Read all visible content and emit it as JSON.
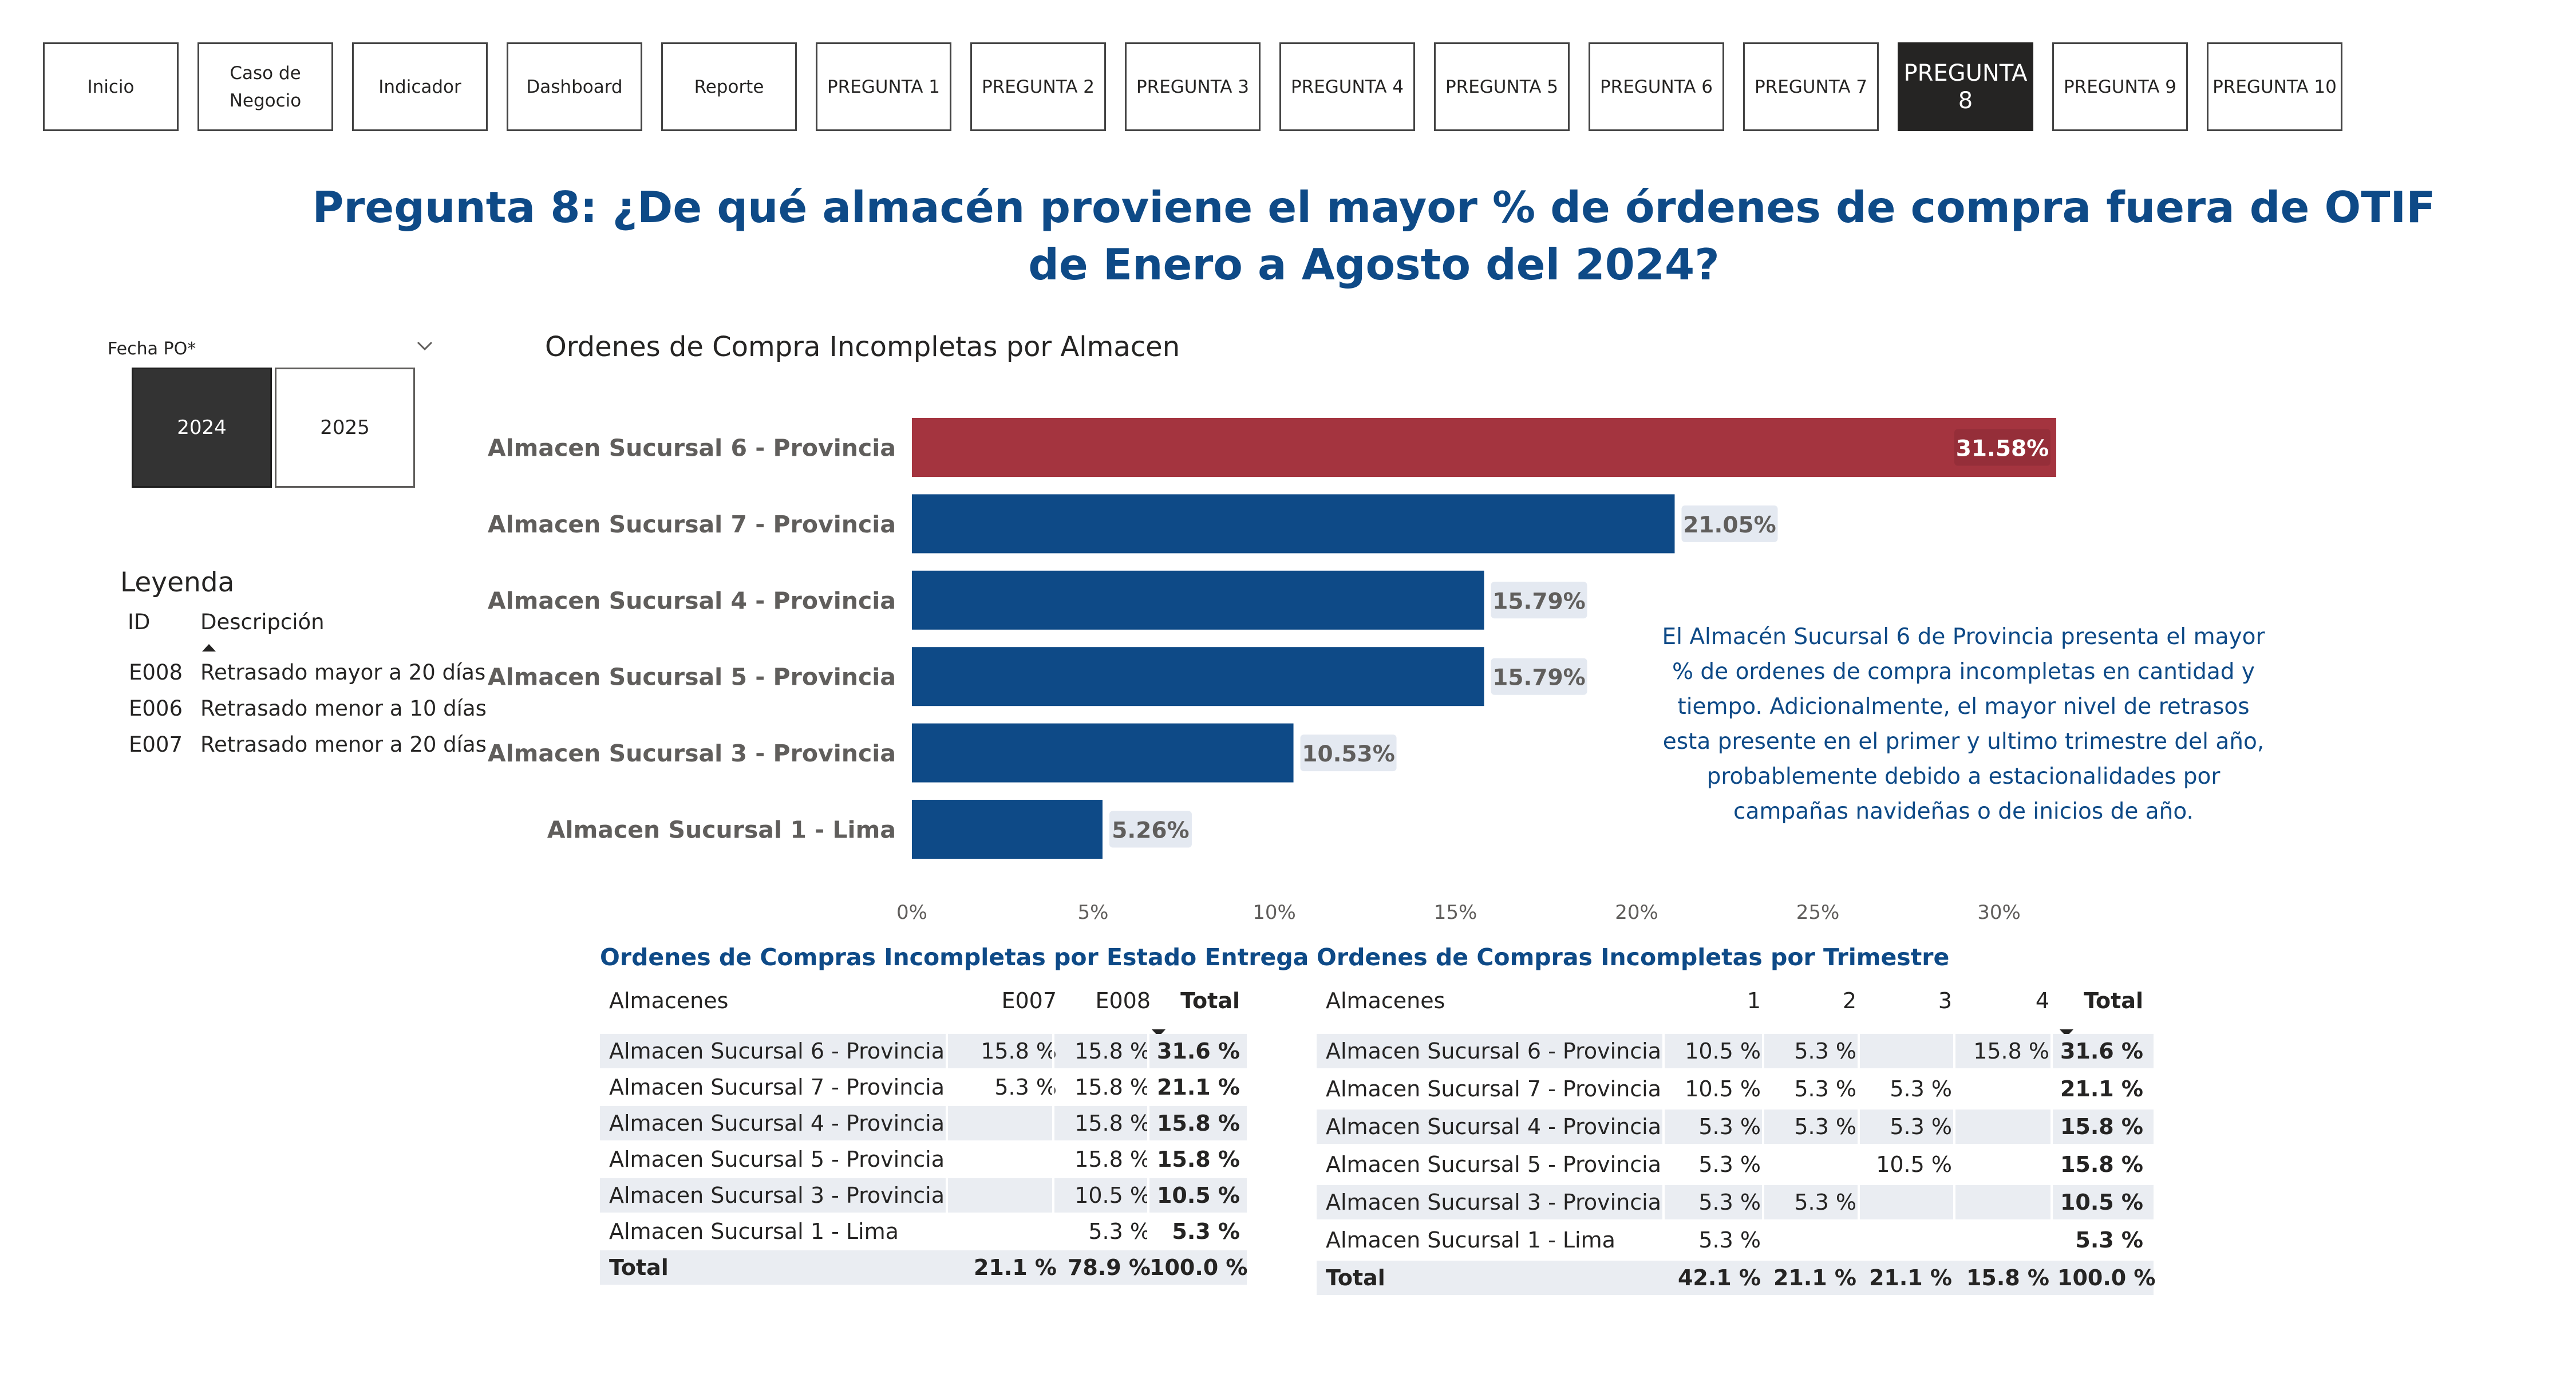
{
  "nav": {
    "buttons": [
      "Inicio",
      "Caso de Negocio",
      "Indicador",
      "Dashboard",
      "Reporte",
      "PREGUNTA 1",
      "PREGUNTA 2",
      "PREGUNTA 3",
      "PREGUNTA 4",
      "PREGUNTA 5",
      "PREGUNTA 6",
      "PREGUNTA 7",
      "PREGUNTA 8",
      "PREGUNTA 9",
      "PREGUNTA 10"
    ],
    "active": "PREGUNTA 8",
    "caso_line1": "Caso de",
    "caso_line2": "Negocio"
  },
  "title": {
    "line1": "Pregunta 8: ¿De qué almacén proviene el mayor % de órdenes de compra fuera de OTIF",
    "line2": "de Enero a Agosto del 2024?"
  },
  "slicer": {
    "label": "Fecha PO*",
    "options": [
      "2024",
      "2025"
    ],
    "selected": "2024"
  },
  "legend": {
    "title": "Leyenda",
    "col_id": "ID",
    "col_desc": "Descripción",
    "rows": [
      {
        "id": "E008",
        "desc": "Retrasado mayor a 20 días"
      },
      {
        "id": "E006",
        "desc": "Retrasado menor a 10 días"
      },
      {
        "id": "E007",
        "desc": "Retrasado menor a 20 días"
      }
    ]
  },
  "insight": "El Almacén Sucursal 6 de Provincia presenta el mayor % de ordenes de compra incompletas en cantidad y tiempo. Adicionalmente, el mayor nivel de retrasos esta presente en el primer y ultimo trimestre del año, probablemente debido a estacionalidades por campañas navideñas o de inicios de año.",
  "colors": {
    "highlight": "#a4343f",
    "bar": "#0e4a87",
    "title": "#0e4a87",
    "label_bg": "#e4e9f1"
  },
  "chart_data": {
    "type": "bar",
    "orientation": "horizontal",
    "title": "Ordenes de Compra Incompletas por Almacen",
    "categories": [
      "Almacen Sucursal 6 - Provincia",
      "Almacen Sucursal 7 - Provincia",
      "Almacen Sucursal 4 - Provincia",
      "Almacen Sucursal 5 - Provincia",
      "Almacen Sucursal 3 - Provincia",
      "Almacen Sucursal 1 - Lima"
    ],
    "values": [
      31.58,
      21.05,
      15.79,
      15.79,
      10.53,
      5.26
    ],
    "labels": [
      "31.58%",
      "21.05%",
      "15.79%",
      "15.79%",
      "10.53%",
      "5.26%"
    ],
    "highlighted_index": 0,
    "xlim": [
      0,
      31.58
    ],
    "xticks": [
      0,
      5,
      10,
      15,
      20,
      25,
      30
    ],
    "xtick_labels": [
      "0%",
      "5%",
      "10%",
      "15%",
      "20%",
      "25%",
      "30%"
    ],
    "grid": false
  },
  "table_estado": {
    "title": "Ordenes de Compras Incompletas por Estado Entrega",
    "headers": [
      "Almacenes",
      "E007",
      "E008",
      "Total"
    ],
    "rows": [
      [
        "Almacen Sucursal 6 - Provincia",
        "15.8 %",
        "15.8 %",
        "31.6 %"
      ],
      [
        "Almacen Sucursal 7 - Provincia",
        "5.3 %",
        "15.8 %",
        "21.1 %"
      ],
      [
        "Almacen Sucursal 4 - Provincia",
        "",
        "15.8 %",
        "15.8 %"
      ],
      [
        "Almacen Sucursal 5 - Provincia",
        "",
        "15.8 %",
        "15.8 %"
      ],
      [
        "Almacen Sucursal 3 - Provincia",
        "",
        "10.5 %",
        "10.5 %"
      ],
      [
        "Almacen Sucursal 1 - Lima",
        "",
        "5.3 %",
        "5.3 %"
      ]
    ],
    "total": [
      "Total",
      "21.1 %",
      "78.9 %",
      "100.0 %"
    ]
  },
  "table_trimestre": {
    "title": "Ordenes de Compras Incompletas por Trimestre",
    "headers": [
      "Almacenes",
      "1",
      "2",
      "3",
      "4",
      "Total"
    ],
    "rows": [
      [
        "Almacen Sucursal 6 - Provincia",
        "10.5 %",
        "5.3 %",
        "",
        "15.8 %",
        "31.6 %"
      ],
      [
        "Almacen Sucursal 7 - Provincia",
        "10.5 %",
        "5.3 %",
        "5.3 %",
        "",
        "21.1 %"
      ],
      [
        "Almacen Sucursal 4 - Provincia",
        "5.3 %",
        "5.3 %",
        "5.3 %",
        "",
        "15.8 %"
      ],
      [
        "Almacen Sucursal 5 - Provincia",
        "5.3 %",
        "",
        "10.5 %",
        "",
        "15.8 %"
      ],
      [
        "Almacen Sucursal 3 - Provincia",
        "5.3 %",
        "5.3 %",
        "",
        "",
        "10.5 %"
      ],
      [
        "Almacen Sucursal 1 - Lima",
        "5.3 %",
        "",
        "",
        "",
        "5.3 %"
      ]
    ],
    "total": [
      "Total",
      "42.1 %",
      "21.1 %",
      "21.1 %",
      "15.8 %",
      "100.0 %"
    ]
  }
}
